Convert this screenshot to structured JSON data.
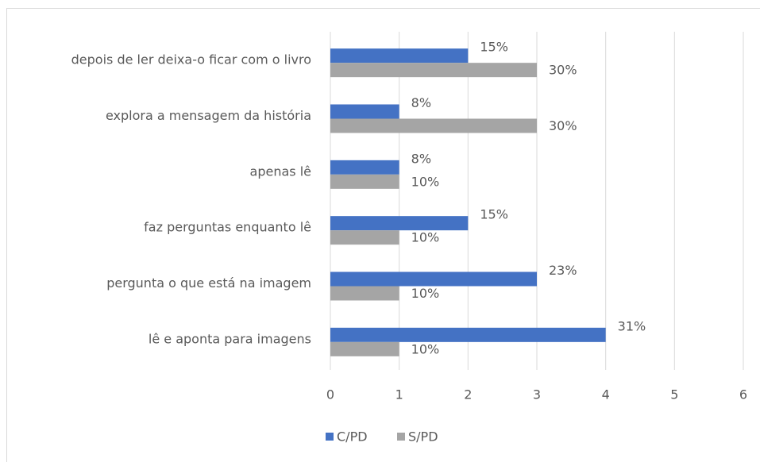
{
  "chart_data": {
    "type": "bar",
    "orientation": "horizontal",
    "categories": [
      "depois de ler deixa-o ficar com o livro",
      "explora a mensagem da história",
      "apenas lê",
      "faz perguntas enquanto lê",
      "pergunta o que está na imagem",
      "lê e aponta para imagens"
    ],
    "series": [
      {
        "name": "C/PD",
        "color": "#4472c4",
        "values": [
          2,
          1,
          1,
          2,
          3,
          4
        ],
        "value_labels": [
          "15%",
          "8%",
          "8%",
          "15%",
          "23%",
          "31%"
        ]
      },
      {
        "name": "S/PD",
        "color": "#a5a5a5",
        "values": [
          3,
          3,
          1,
          1,
          1,
          1
        ],
        "value_labels": [
          "30%",
          "30%",
          "10%",
          "10%",
          "10%",
          "10%"
        ]
      }
    ],
    "xlim": [
      0,
      6
    ],
    "xticks": [
      0,
      1,
      2,
      3,
      4,
      5,
      6
    ],
    "grid": true,
    "legend": "bottom"
  }
}
